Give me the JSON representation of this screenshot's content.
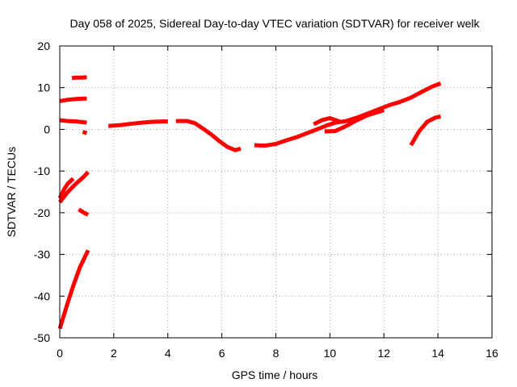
{
  "chart_data": {
    "type": "line",
    "title": "Day 058 of 2025, Sidereal Day-to-day VTEC variation (SDTVAR) for receiver welk",
    "xlabel": "GPS time / hours",
    "ylabel": "SDTVAR / TECUs",
    "xlim": [
      0,
      16
    ],
    "ylim": [
      -50,
      20
    ],
    "xticks": [
      0,
      2,
      4,
      6,
      8,
      10,
      12,
      14,
      16
    ],
    "yticks": [
      -50,
      -40,
      -30,
      -20,
      -10,
      0,
      10,
      20
    ],
    "grid": true,
    "legend": "none",
    "series_color": "#ff0000",
    "series": [
      {
        "x": [
          0.45,
          0.6,
          0.8,
          1.0
        ],
        "y": [
          12.3,
          12.4,
          12.4,
          12.5
        ]
      },
      {
        "x": [
          0.0,
          0.3,
          0.6,
          0.9,
          1.0
        ],
        "y": [
          6.8,
          7.1,
          7.3,
          7.4,
          7.4
        ]
      },
      {
        "x": [
          0.0,
          0.3,
          0.6,
          0.9,
          1.0
        ],
        "y": [
          2.2,
          2.0,
          1.9,
          1.7,
          1.6
        ]
      },
      {
        "x": [
          0.85,
          1.0
        ],
        "y": [
          -0.6,
          -0.9
        ]
      },
      {
        "x": [
          0.0,
          0.15,
          0.3,
          0.5
        ],
        "y": [
          -16.5,
          -14.5,
          -13.0,
          -11.8
        ]
      },
      {
        "x": [
          0.0,
          0.3,
          0.6,
          0.9,
          1.05
        ],
        "y": [
          -17.5,
          -15.0,
          -13.0,
          -11.3,
          -10.2
        ]
      },
      {
        "x": [
          0.7,
          0.9,
          1.05
        ],
        "y": [
          -19.2,
          -20.0,
          -20.5
        ]
      },
      {
        "x": [
          0.0,
          0.25,
          0.5,
          0.75,
          1.05
        ],
        "y": [
          -47.8,
          -42.5,
          -37.5,
          -33.0,
          -29.0
        ]
      },
      {
        "x": [
          1.8,
          2.2,
          2.6,
          3.0,
          3.4,
          3.8,
          4.0
        ],
        "y": [
          0.8,
          1.0,
          1.3,
          1.6,
          1.8,
          1.9,
          1.9
        ]
      },
      {
        "x": [
          4.3,
          4.7,
          5.0,
          5.3,
          5.6,
          5.9,
          6.2,
          6.5,
          6.7
        ],
        "y": [
          2.0,
          2.0,
          1.5,
          0.2,
          -1.2,
          -2.8,
          -4.2,
          -5.0,
          -4.6
        ]
      },
      {
        "x": [
          7.2,
          7.6,
          8.0,
          8.4,
          8.8,
          9.2,
          9.6,
          9.9,
          10.2,
          10.6,
          11.0,
          11.4,
          11.8,
          12.2,
          12.6,
          13.0,
          13.4,
          13.8,
          14.1
        ],
        "y": [
          -3.8,
          -3.9,
          -3.5,
          -2.6,
          -1.8,
          -0.8,
          0.2,
          1.0,
          1.6,
          2.0,
          2.8,
          3.8,
          4.8,
          5.8,
          6.6,
          7.6,
          9.0,
          10.3,
          11.0
        ]
      },
      {
        "x": [
          9.4,
          9.7,
          10.0,
          10.4
        ],
        "y": [
          1.2,
          2.2,
          2.7,
          1.8
        ]
      },
      {
        "x": [
          9.8,
          10.2,
          10.6,
          11.0,
          11.4,
          11.8,
          12.0
        ],
        "y": [
          -0.5,
          -0.4,
          0.8,
          2.2,
          3.4,
          4.2,
          4.6
        ]
      },
      {
        "x": [
          13.0,
          13.3,
          13.6,
          13.9,
          14.1
        ],
        "y": [
          -3.8,
          -0.5,
          1.8,
          2.8,
          3.1
        ]
      }
    ]
  }
}
